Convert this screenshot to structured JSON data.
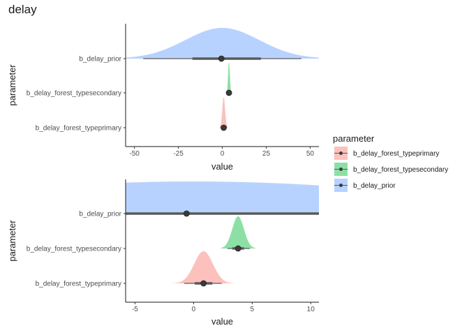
{
  "title": "delay",
  "legend": {
    "title": "parameter",
    "entries": [
      {
        "label": "b_delay_forest_typeprimary",
        "color": "#F8766D"
      },
      {
        "label": "b_delay_forest_typesecondary",
        "color": "#00BA38"
      },
      {
        "label": "b_delay_prior",
        "color": "#619CFF"
      }
    ]
  },
  "chart_data": [
    {
      "type": "halfeye",
      "xlabel": "value",
      "ylabel": "parameter",
      "xlim": [
        -55,
        55
      ],
      "xticks": [
        -50,
        -25,
        0,
        25,
        50
      ],
      "categories": [
        "b_delay_prior",
        "b_delay_forest_typesecondary",
        "b_delay_forest_typeprimary"
      ],
      "series": [
        {
          "name": "b_delay_prior",
          "color": "#619CFF",
          "density_center": 0,
          "density_sd": 21,
          "density_range": [
            -55,
            55
          ],
          "point": -0.5,
          "interval_66": [
            -17,
            22
          ],
          "interval_95": [
            -45,
            45
          ]
        },
        {
          "name": "b_delay_forest_typesecondary",
          "color": "#00BA38",
          "density_center": 3.8,
          "density_sd": 0.5,
          "density_range": [
            2.3,
            5.3
          ],
          "point": 3.8,
          "interval_66": [
            3.3,
            4.3
          ],
          "interval_95": [
            2.9,
            4.8
          ]
        },
        {
          "name": "b_delay_forest_typeprimary",
          "color": "#F8766D",
          "density_center": 0.8,
          "density_sd": 0.8,
          "density_range": [
            -1.6,
            3.2
          ],
          "point": 0.8,
          "interval_66": [
            0.1,
            1.6
          ],
          "interval_95": [
            -0.7,
            2.4
          ]
        }
      ]
    },
    {
      "type": "halfeye",
      "xlabel": "value",
      "ylabel": "parameter",
      "xlim": [
        -5.8,
        10.7
      ],
      "xticks": [
        -5,
        0,
        5,
        10
      ],
      "categories": [
        "b_delay_prior",
        "b_delay_forest_typesecondary",
        "b_delay_forest_typeprimary"
      ],
      "series": [
        {
          "name": "b_delay_prior",
          "color": "#619CFF",
          "density_center": 0,
          "density_sd": 21,
          "density_range": [
            -5.8,
            10.7
          ],
          "point": -0.6,
          "interval_66": [
            -5.8,
            10.7
          ],
          "interval_95": [
            -5.8,
            10.7
          ]
        },
        {
          "name": "b_delay_forest_typesecondary",
          "color": "#00BA38",
          "density_center": 3.8,
          "density_sd": 0.5,
          "density_range": [
            2.3,
            5.3
          ],
          "point": 3.8,
          "interval_66": [
            3.3,
            4.3
          ],
          "interval_95": [
            2.9,
            4.8
          ]
        },
        {
          "name": "b_delay_forest_typeprimary",
          "color": "#F8766D",
          "density_center": 0.85,
          "density_sd": 0.8,
          "density_range": [
            -2.3,
            3.5
          ],
          "point": 0.85,
          "interval_66": [
            0.1,
            1.6
          ],
          "interval_95": [
            -0.8,
            2.4
          ]
        }
      ]
    }
  ]
}
